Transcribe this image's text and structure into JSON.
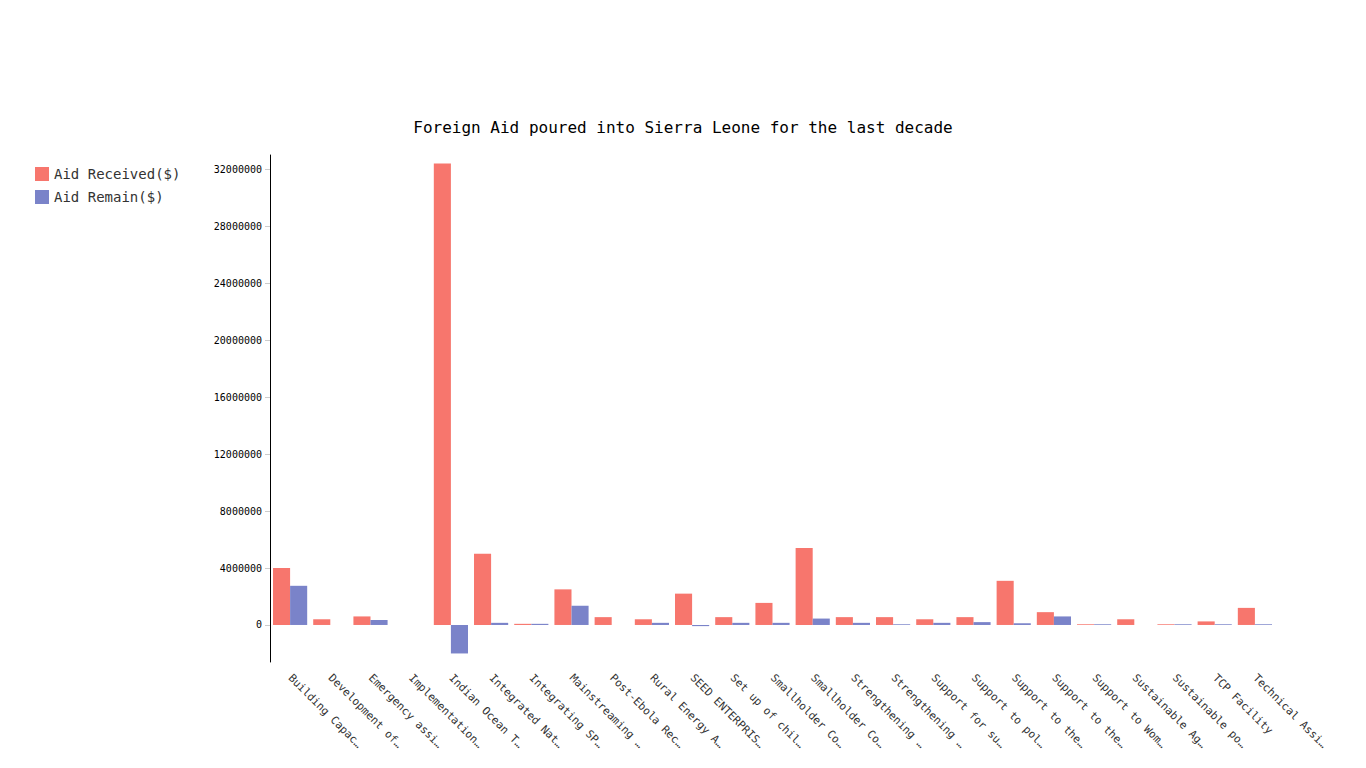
{
  "chart_data": {
    "type": "bar",
    "title": "Foreign Aid poured into Sierra Leone for the last decade",
    "categories": [
      "Building Capac…",
      "Development of…",
      "Emergency assi…",
      "Implementation…",
      "Indian Ocean T…",
      "Integrated Nat…",
      "Integrating SP…",
      "Mainstreaming …",
      "Post-Ebola Rec…",
      "Rural Energy A…",
      "SEED ENTERPRIS…",
      "Set up of chil…",
      "Smallholder Co…",
      "Smallholder Co…",
      "Strengthening …",
      "Strengthening …",
      "Support for su…",
      "Support to pol…",
      "Support to the…",
      "Support to the…",
      "Support to Wom…",
      "Sustainable Ag…",
      "Sustainable po…",
      "TCP Facility",
      "Technical Assi…"
    ],
    "series": [
      {
        "name": "Aid Received($)",
        "color": "#f7766d",
        "values": [
          4000000,
          400000,
          600000,
          0,
          32400000,
          5000000,
          80000,
          2500000,
          550000,
          400000,
          2200000,
          550000,
          1550000,
          5400000,
          550000,
          550000,
          400000,
          550000,
          3100000,
          900000,
          50000,
          400000,
          50000,
          250000,
          1200000
        ]
      },
      {
        "name": "Aid Remain($)",
        "color": "#7a83c9",
        "values": [
          2750000,
          0,
          350000,
          0,
          -2000000,
          150000,
          80000,
          1350000,
          0,
          150000,
          -80000,
          150000,
          150000,
          450000,
          150000,
          50000,
          150000,
          200000,
          120000,
          600000,
          50000,
          0,
          50000,
          50000,
          50000
        ]
      }
    ],
    "ylim": [
      -2600000,
      33000000
    ],
    "yticks": [
      0,
      4000000,
      8000000,
      12000000,
      16000000,
      20000000,
      24000000,
      28000000,
      32000000
    ],
    "grid": false,
    "legend": "top-left"
  }
}
